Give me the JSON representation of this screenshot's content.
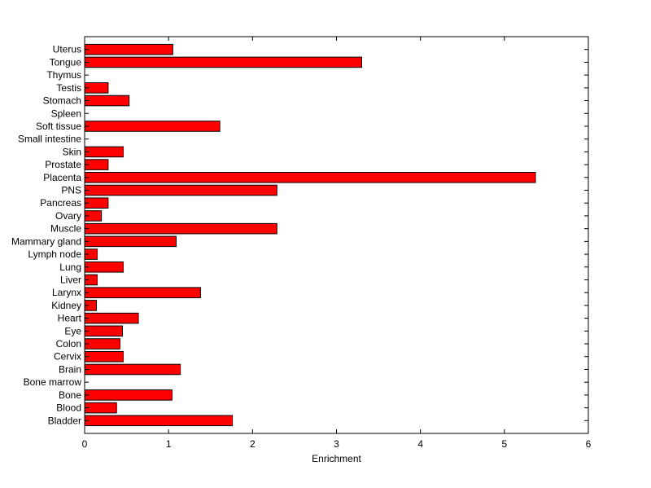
{
  "chart_data": {
    "type": "bar",
    "orientation": "horizontal",
    "title": "",
    "xlabel": "Enrichment",
    "ylabel": "",
    "xlim": [
      0,
      6
    ],
    "xticks": [
      0,
      1,
      2,
      3,
      4,
      5,
      6
    ],
    "grid": false,
    "legend": "none",
    "bar_color": "#ff0000",
    "bar_edge_color": "#000000",
    "categories": [
      "Bladder",
      "Blood",
      "Bone",
      "Bone marrow",
      "Brain",
      "Cervix",
      "Colon",
      "Eye",
      "Heart",
      "Kidney",
      "Larynx",
      "Liver",
      "Lung",
      "Lymph node",
      "Mammary gland",
      "Muscle",
      "Ovary",
      "Pancreas",
      "PNS",
      "Placenta",
      "Prostate",
      "Skin",
      "Small intestine",
      "Soft tissue",
      "Spleen",
      "Stomach",
      "Testis",
      "Thymus",
      "Tongue",
      "Uterus"
    ],
    "values": [
      1.76,
      0.38,
      1.04,
      0.0,
      1.14,
      0.46,
      0.42,
      0.45,
      0.64,
      0.14,
      1.38,
      0.15,
      0.46,
      0.15,
      1.09,
      2.29,
      0.2,
      0.28,
      2.29,
      5.37,
      0.28,
      0.46,
      0.0,
      1.61,
      0.0,
      0.53,
      0.28,
      0.0,
      3.3,
      1.05
    ]
  }
}
